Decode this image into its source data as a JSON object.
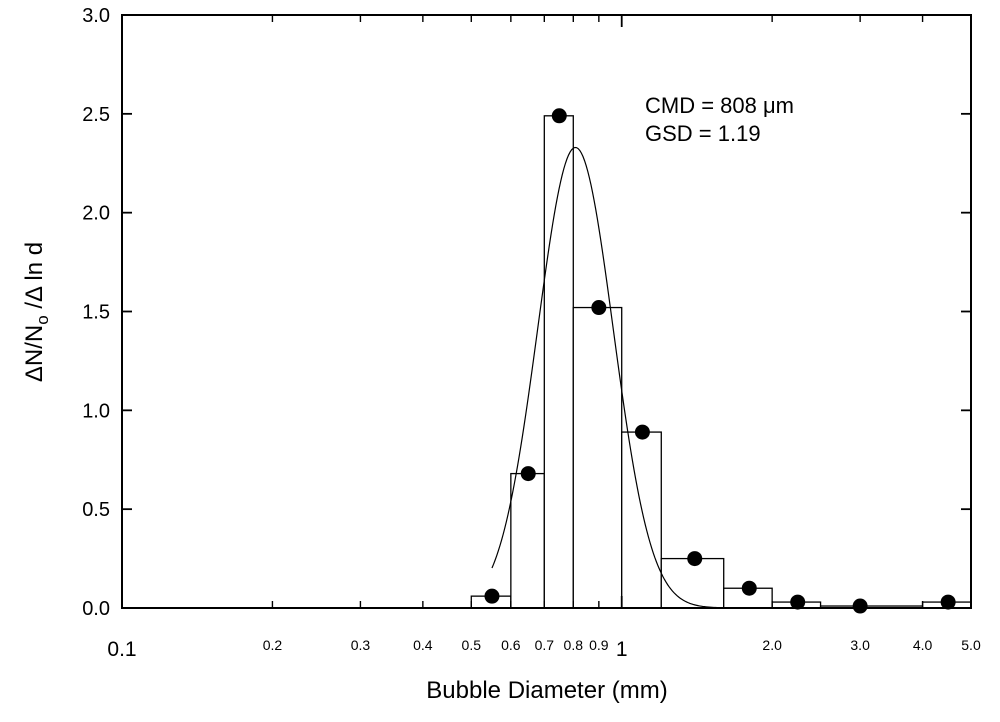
{
  "chart_data": {
    "type": "bar",
    "x_scale": "log",
    "xlabel": "Bubble Diameter (mm)",
    "ylabel": "ΔN/No /Δ ln d",
    "ylabel_parts": {
      "delta1": "Δ",
      "n": "N/N",
      "sub": "o",
      "rest": " /Δ ln d"
    },
    "xlim": [
      0.1,
      5.0
    ],
    "ylim": [
      0,
      3.0
    ],
    "yticks": [
      "0.0",
      "0.5",
      "1.0",
      "1.5",
      "2.0",
      "2.5",
      "3.0"
    ],
    "xticks_major": [
      {
        "value": 0.1,
        "label": "0.1"
      },
      {
        "value": 1,
        "label": "1"
      }
    ],
    "xticks_minor": [
      {
        "value": 0.2,
        "label": "0.2"
      },
      {
        "value": 0.3,
        "label": "0.3"
      },
      {
        "value": 0.4,
        "label": "0.4"
      },
      {
        "value": 0.5,
        "label": "0.5"
      },
      {
        "value": 0.6,
        "label": "0.6"
      },
      {
        "value": 0.7,
        "label": "0.7"
      },
      {
        "value": 0.8,
        "label": "0.8"
      },
      {
        "value": 0.9,
        "label": "0.9"
      },
      {
        "value": 2.0,
        "label": "2.0"
      },
      {
        "value": 3.0,
        "label": "3.0"
      },
      {
        "value": 4.0,
        "label": "4.0"
      },
      {
        "value": 5.0,
        "label": "5.0"
      }
    ],
    "histogram": [
      {
        "x0": 0.5,
        "x1": 0.6,
        "value": 0.06
      },
      {
        "x0": 0.6,
        "x1": 0.7,
        "value": 0.68
      },
      {
        "x0": 0.7,
        "x1": 0.8,
        "value": 2.49
      },
      {
        "x0": 0.8,
        "x1": 1.0,
        "value": 1.52
      },
      {
        "x0": 1.0,
        "x1": 1.2,
        "value": 0.89
      },
      {
        "x0": 1.2,
        "x1": 1.6,
        "value": 0.25
      },
      {
        "x0": 1.6,
        "x1": 2.0,
        "value": 0.1
      },
      {
        "x0": 2.0,
        "x1": 2.5,
        "value": 0.03
      },
      {
        "x0": 2.5,
        "x1": 4.0,
        "value": 0.01
      },
      {
        "x0": 4.0,
        "x1": 5.0,
        "value": 0.03
      }
    ],
    "points": [
      {
        "x": 0.55,
        "y": 0.06
      },
      {
        "x": 0.65,
        "y": 0.68
      },
      {
        "x": 0.75,
        "y": 2.49
      },
      {
        "x": 0.9,
        "y": 1.52
      },
      {
        "x": 1.1,
        "y": 0.89
      },
      {
        "x": 1.4,
        "y": 0.25
      },
      {
        "x": 1.8,
        "y": 0.1
      },
      {
        "x": 2.25,
        "y": 0.03
      },
      {
        "x": 3.0,
        "y": 0.01
      },
      {
        "x": 4.5,
        "y": 0.03
      }
    ],
    "fit_curve": {
      "cmd_um": 808,
      "gsd": 1.19,
      "peak": 2.33,
      "x_start": 0.55
    },
    "annotations": [
      "CMD = 808 μm",
      "GSD = 1.19"
    ],
    "grid": false,
    "legend": "none"
  }
}
